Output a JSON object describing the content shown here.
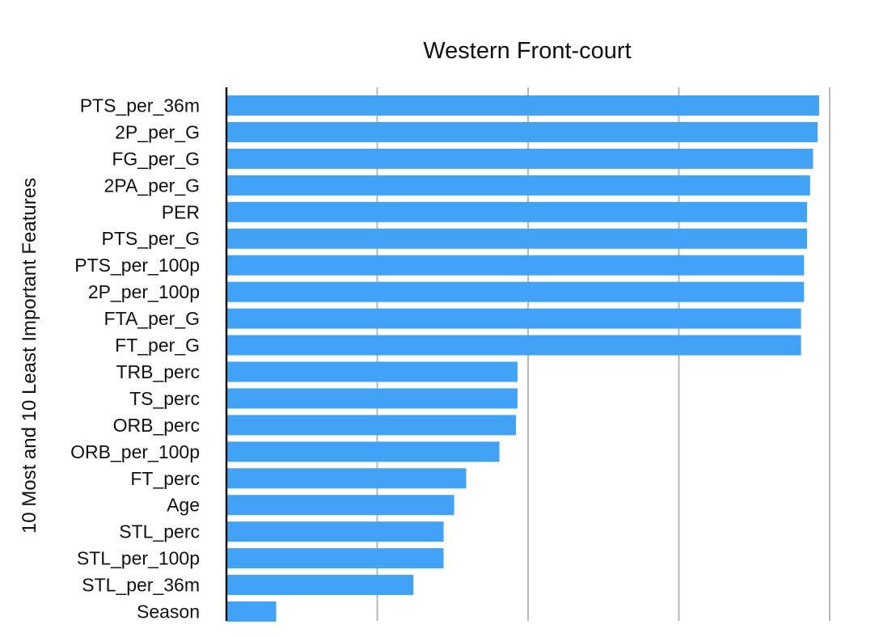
{
  "chart_data": {
    "type": "bar",
    "orientation": "horizontal",
    "title": "Western Front-court",
    "xlabel": "",
    "ylabel": "10 Most and 10 Least Important Features",
    "xlim": [
      0,
      4
    ],
    "grid": "vertical",
    "bar_color": "#42a2f6",
    "categories": [
      "PTS_per_36m",
      "2P_per_G",
      "FG_per_G",
      "2PA_per_G",
      "PER",
      "PTS_per_G",
      "PTS_per_100p",
      "2P_per_100p",
      "FTA_per_G",
      "FT_per_G",
      "TRB_perc",
      "TS_perc",
      "ORB_perc",
      "ORB_per_100p",
      "FT_perc",
      "Age",
      "STL_perc",
      "STL_per_100p",
      "STL_per_36m",
      "Season"
    ],
    "values": [
      3.93,
      3.92,
      3.89,
      3.87,
      3.85,
      3.85,
      3.83,
      3.83,
      3.81,
      3.81,
      1.93,
      1.93,
      1.92,
      1.81,
      1.59,
      1.51,
      1.44,
      1.44,
      1.24,
      0.33
    ]
  }
}
